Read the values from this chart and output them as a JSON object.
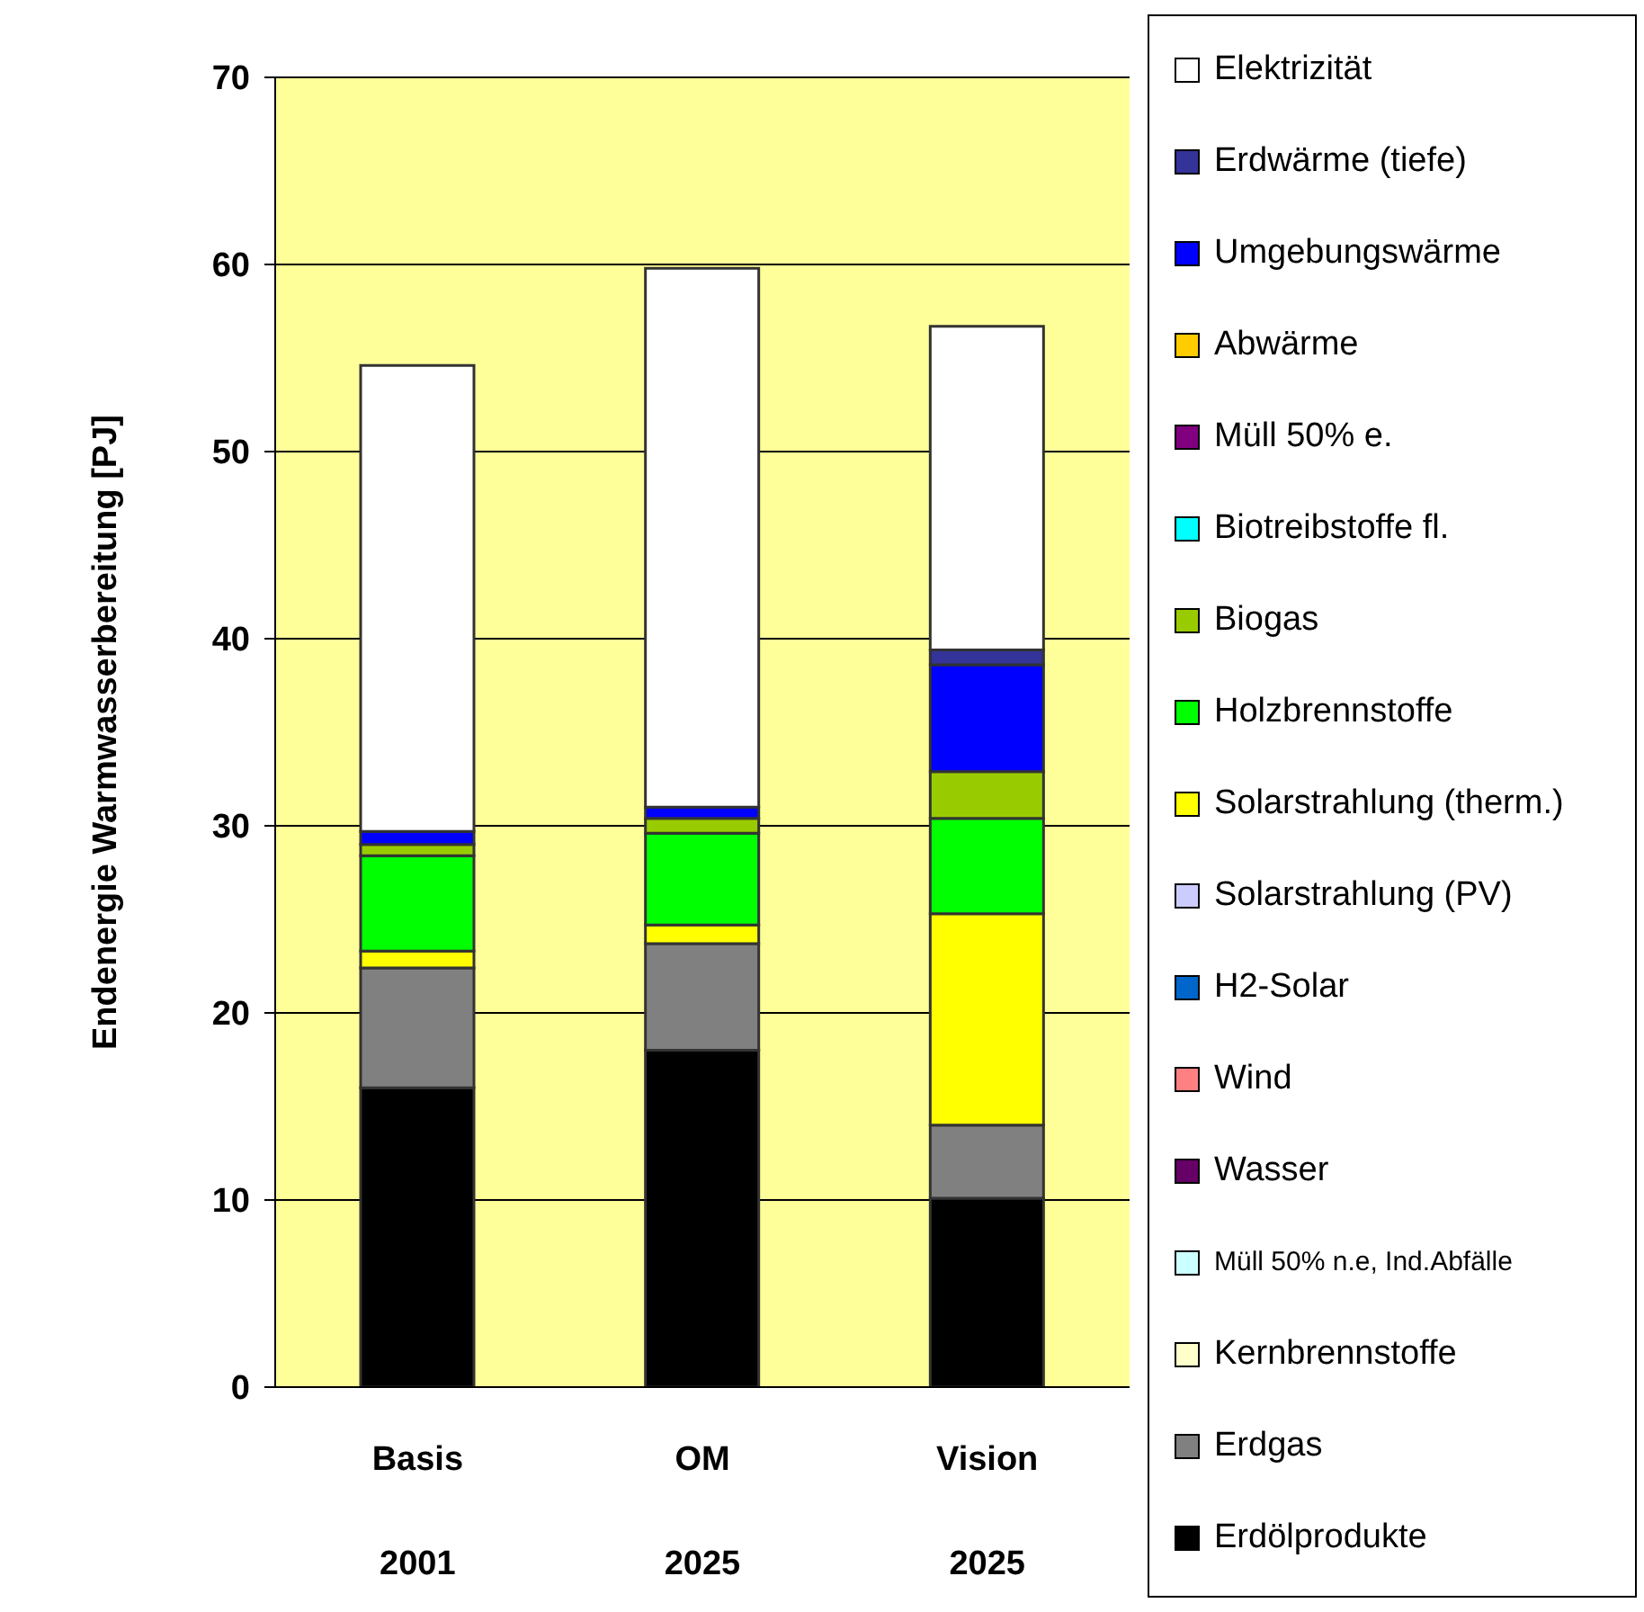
{
  "chart_data": {
    "type": "bar",
    "stacked": true,
    "ylabel": "Endenergie Warmwasserbereitung [PJ]",
    "categories": [
      "Basis 2001",
      "OM 2025",
      "Vision 2025"
    ],
    "ylim": [
      0,
      70
    ],
    "yticks": [
      0,
      10,
      20,
      30,
      40,
      50,
      60,
      70
    ],
    "grid": "y",
    "legend": "right",
    "series": [
      {
        "name": "Erdölprodukte",
        "color": "#000000",
        "values": [
          16.0,
          18.0,
          10.1
        ]
      },
      {
        "name": "Erdgas",
        "color": "#808080",
        "values": [
          6.4,
          5.7,
          3.9
        ]
      },
      {
        "name": "Kernbrennstoffe",
        "color": "#ffffcc",
        "values": [
          0,
          0,
          0
        ]
      },
      {
        "name": "Müll 50% n.e, Ind.Abfälle",
        "color": "#ccffff",
        "values": [
          0,
          0,
          0
        ]
      },
      {
        "name": "Wasser",
        "color": "#660066",
        "values": [
          0,
          0,
          0
        ]
      },
      {
        "name": "Wind",
        "color": "#ff8080",
        "values": [
          0,
          0,
          0
        ]
      },
      {
        "name": "H2-Solar",
        "color": "#0066cc",
        "values": [
          0,
          0,
          0
        ]
      },
      {
        "name": "Solarstrahlung (PV)",
        "color": "#ccccff",
        "values": [
          0,
          0,
          0
        ]
      },
      {
        "name": "Solarstrahlung (therm.)",
        "color": "#ffff00",
        "values": [
          0.9,
          1.0,
          11.3
        ]
      },
      {
        "name": "Holzbrennstoffe",
        "color": "#00ff00",
        "values": [
          5.1,
          4.9,
          5.1
        ]
      },
      {
        "name": "Biogas",
        "color": "#99cc00",
        "values": [
          0.6,
          0.8,
          2.5
        ]
      },
      {
        "name": "Biotreibstoffe fl.",
        "color": "#00ffff",
        "values": [
          0,
          0,
          0
        ]
      },
      {
        "name": "Müll 50% e.",
        "color": "#800080",
        "values": [
          0,
          0,
          0
        ]
      },
      {
        "name": "Abwärme",
        "color": "#ffcc00",
        "values": [
          0,
          0,
          0
        ]
      },
      {
        "name": "Umgebungswärme",
        "color": "#0000ff",
        "values": [
          0.7,
          0.6,
          5.7
        ]
      },
      {
        "name": "Erdwärme (tiefe)",
        "color": "#333399",
        "values": [
          0,
          0,
          0.8
        ]
      },
      {
        "name": "Elektrizität",
        "color": "#ffffff",
        "values": [
          24.9,
          28.8,
          17.3
        ]
      }
    ]
  }
}
